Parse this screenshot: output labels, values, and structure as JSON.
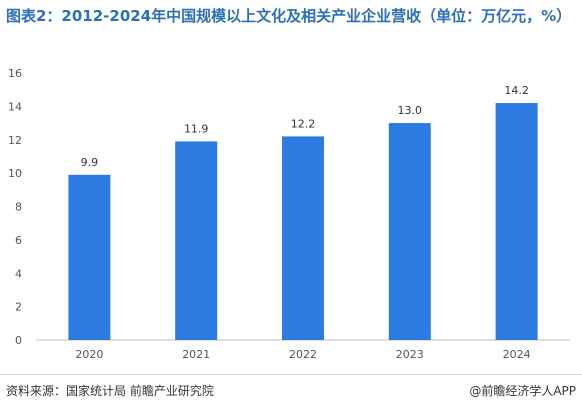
{
  "title": "图表2：2012-2024年中国规模以上文化及相关产业企业营收（单位：万亿元，%）",
  "source_label": "资料来源：国家统计局 前瞻产业研究院",
  "brand_label": "@前瞻经济学人APP",
  "colors": {
    "bar": "#2b7be0",
    "title": "#2f6fb5",
    "axis_text": "#555555",
    "axis_line": "#bfbfbf"
  },
  "chart_data": {
    "type": "bar",
    "categories": [
      "2020",
      "2021",
      "2022",
      "2023",
      "2024"
    ],
    "values": [
      9.9,
      11.9,
      12.2,
      13.0,
      14.2
    ],
    "data_labels": [
      "9.9",
      "11.9",
      "12.2",
      "13.0",
      "14.2"
    ],
    "ylim": [
      0,
      16
    ],
    "yticks": [
      "0",
      "2",
      "4",
      "6",
      "8",
      "10",
      "12",
      "14",
      "16"
    ],
    "xlabel": "",
    "ylabel": "",
    "grid": false
  }
}
